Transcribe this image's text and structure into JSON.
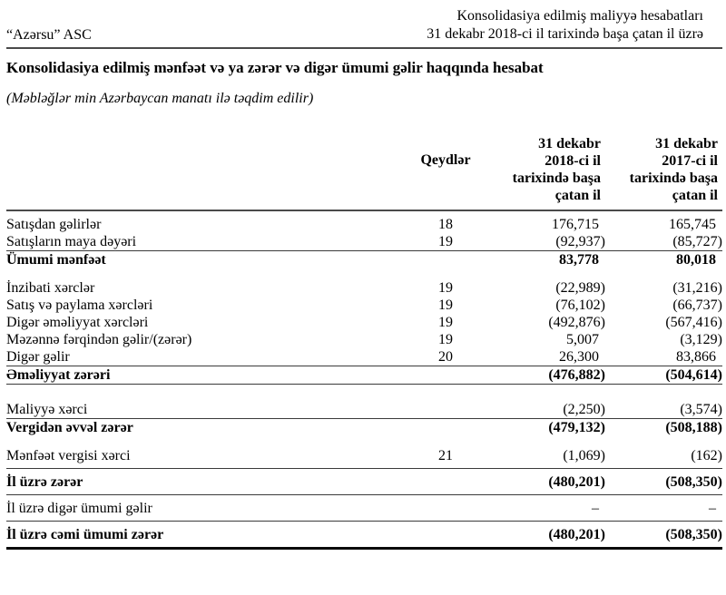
{
  "page_header": {
    "company": "“Azərsu” ASC",
    "report_type": "Konsolidasiya edilmiş maliyyə hesabatları",
    "report_period": "31 dekabr 2018-ci il tarixində başa çatan il üzrə"
  },
  "statement": {
    "title": "Konsolidasiya edilmiş mənfəət və ya zərər və digər ümumi gəlir haqqında hesabat",
    "note": "(Məbləğlər min Azərbaycan manatı ilə təqdim edilir)"
  },
  "table": {
    "columns": {
      "notes": "Qeydlər",
      "y2018": [
        "31 dekabr",
        "2018-ci il",
        "tarixində başa",
        "çatan il"
      ],
      "y2017": [
        "31 dekabr",
        "2017-ci il",
        "tarixində başa",
        "çatan il"
      ]
    },
    "rows": [
      {
        "label": "Satışdan gəlirlər",
        "note": "18",
        "v2018": "176,715",
        "v2017": "165,745"
      },
      {
        "label": "Satışların maya dəyəri",
        "note": "19",
        "v2018": "(92,937)",
        "v2017": "(85,727)"
      },
      {
        "label": "Ümumi mənfəət",
        "note": "",
        "v2018": "83,778",
        "v2017": "80,018"
      },
      {
        "label": "İnzibati xərclər",
        "note": "19",
        "v2018": "(22,989)",
        "v2017": "(31,216)"
      },
      {
        "label": "Satış və paylama xərcləri",
        "note": "19",
        "v2018": "(76,102)",
        "v2017": "(66,737)"
      },
      {
        "label": "Digər əməliyyat xərcləri",
        "note": "19",
        "v2018": "(492,876)",
        "v2017": "(567,416)"
      },
      {
        "label": "Məzənnə fərqindən gəlir/(zərər)",
        "note": "19",
        "v2018": "5,007",
        "v2017": "(3,129)"
      },
      {
        "label": "Digər gəlir",
        "note": "20",
        "v2018": "26,300",
        "v2017": "83,866"
      },
      {
        "label": "Əməliyyat zərəri",
        "note": "",
        "v2018": "(476,882)",
        "v2017": "(504,614)"
      },
      {
        "label": "Maliyyə xərci",
        "note": "",
        "v2018": "(2,250)",
        "v2017": "(3,574)"
      },
      {
        "label": "Vergidən əvvəl zərər",
        "note": "",
        "v2018": "(479,132)",
        "v2017": "(508,188)"
      },
      {
        "label": "Mənfəət vergisi xərci",
        "note": "21",
        "v2018": "(1,069)",
        "v2017": "(162)"
      },
      {
        "label": "İl üzrə zərər",
        "note": "",
        "v2018": "(480,201)",
        "v2017": "(508,350)"
      },
      {
        "label": "İl üzrə digər ümumi gəlir",
        "note": "",
        "v2018": "–",
        "v2017": "–"
      },
      {
        "label": "İl üzrə cəmi ümumi zərər",
        "note": "",
        "v2018": "(480,201)",
        "v2017": "(508,350)"
      }
    ]
  },
  "colors": {
    "text": "#000000",
    "background": "#ffffff",
    "rule": "#4a4a4a",
    "heavy_rule": "#0a0a0a"
  }
}
